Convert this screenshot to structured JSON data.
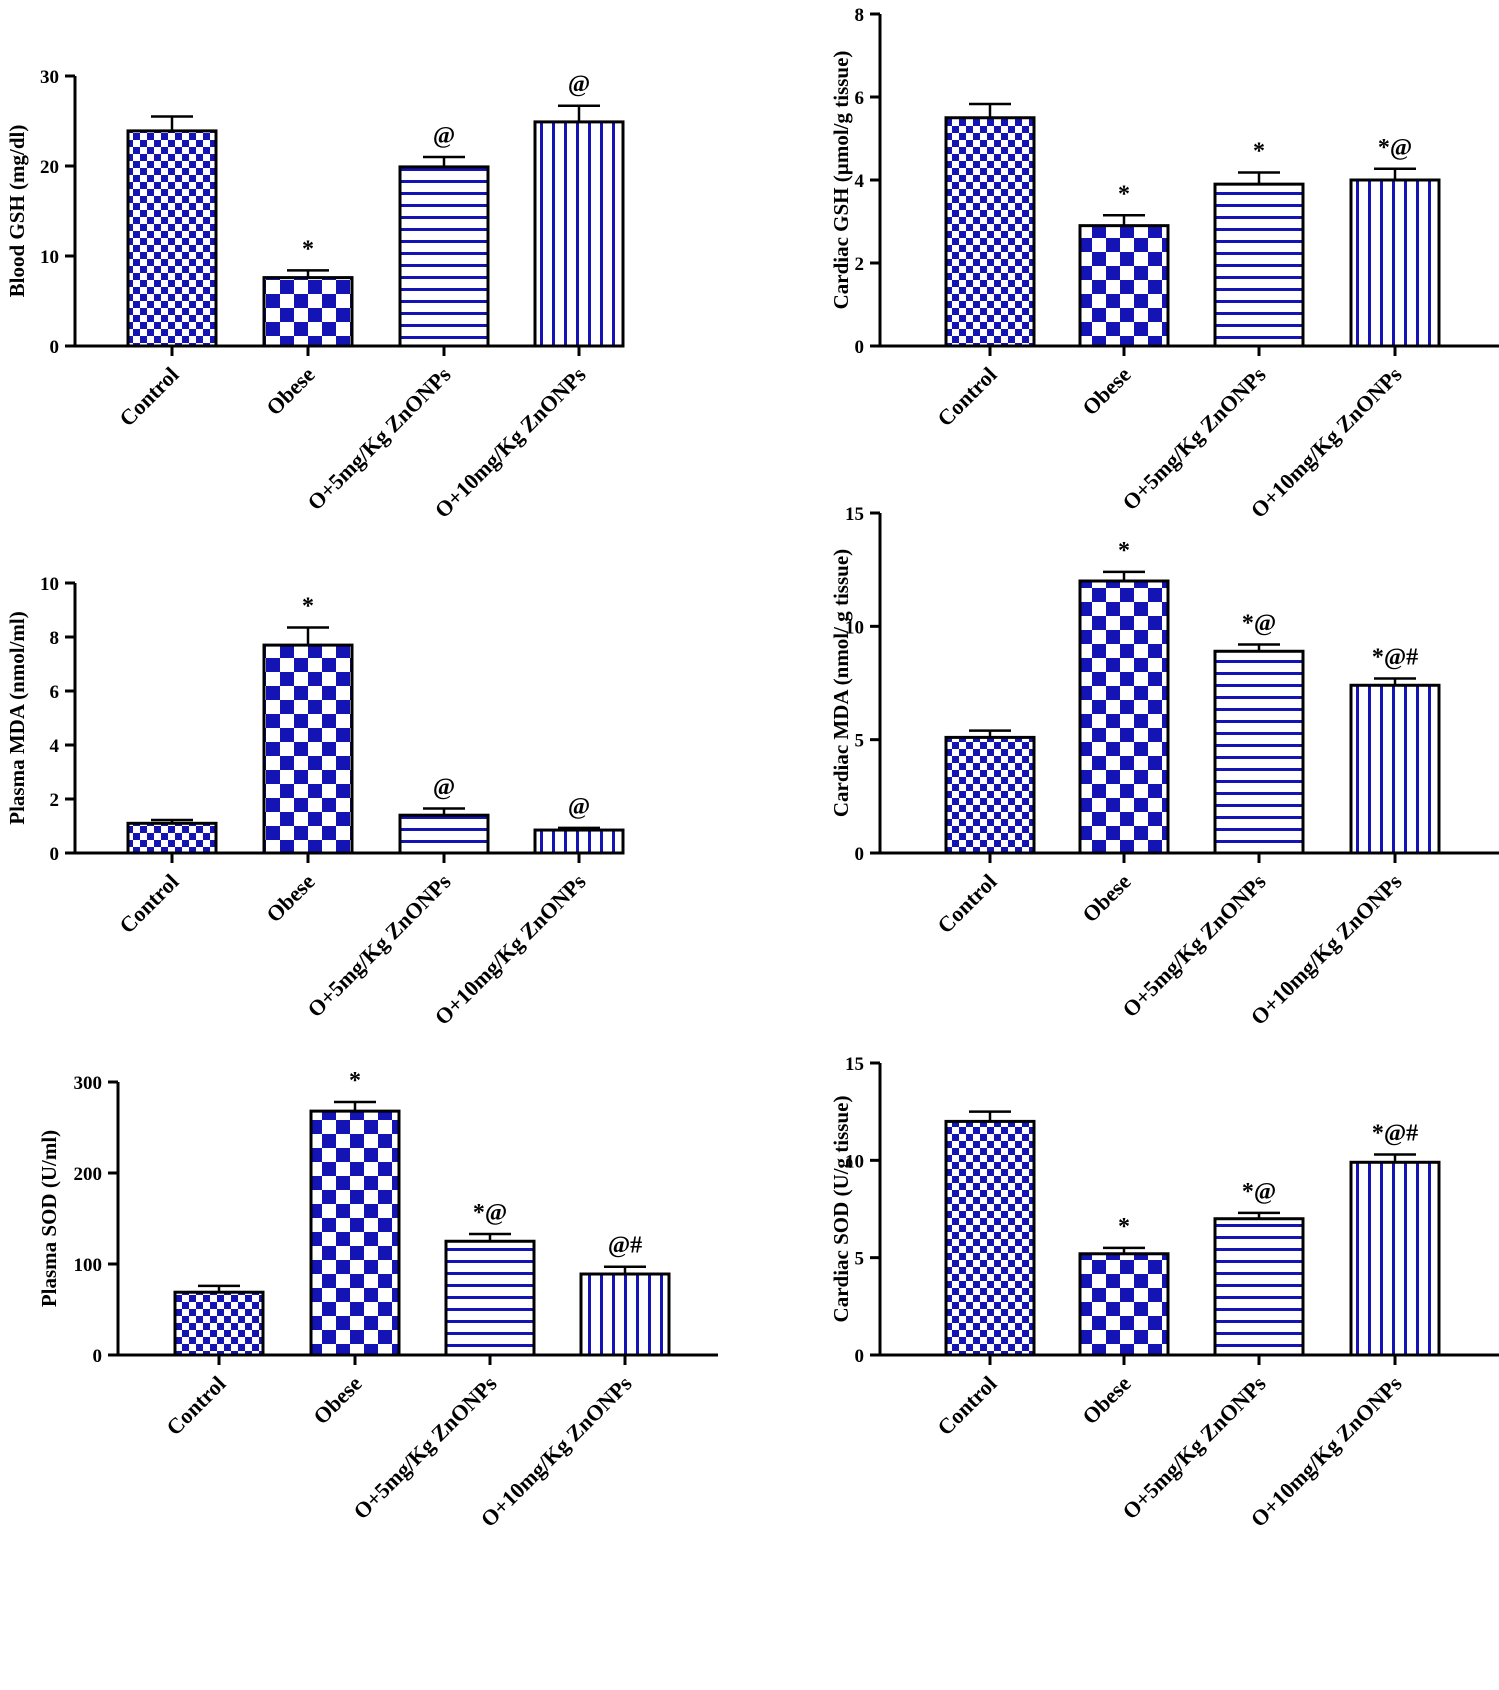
{
  "colors": {
    "bar_fill": "#1414b4",
    "background": "#ffffff",
    "stroke": "#000000"
  },
  "chart_data": [
    {
      "type": "bar",
      "ylabel": "Blood GSH (mg/dl)",
      "categories": [
        "Control",
        "Obese",
        "O+5mg/Kg ZnONPs",
        "O+10mg/Kg ZnONPs"
      ],
      "values": [
        23.9,
        7.6,
        19.9,
        24.9
      ],
      "errors": [
        1.6,
        0.8,
        1.1,
        1.8
      ],
      "annotations": [
        "",
        "*",
        "@",
        "@"
      ],
      "patterns": [
        "checker-fine",
        "checker-coarse",
        "horizontal-lines",
        "vertical-lines"
      ],
      "ylim": [
        0,
        30
      ],
      "yticks": [
        0,
        10,
        20,
        30
      ]
    },
    {
      "type": "bar",
      "ylabel": "Cardiac GSH (µmol/g tissue)",
      "categories": [
        "Control",
        "Obese",
        "O+5mg/Kg ZnONPs",
        "O+10mg/Kg ZnONPs"
      ],
      "values": [
        5.5,
        2.9,
        3.9,
        4.0
      ],
      "errors": [
        0.33,
        0.25,
        0.28,
        0.27
      ],
      "annotations": [
        "",
        "*",
        "*",
        "*@"
      ],
      "patterns": [
        "checker-fine",
        "checker-coarse",
        "horizontal-lines",
        "vertical-lines"
      ],
      "ylim": [
        0,
        8
      ],
      "yticks": [
        0,
        2,
        4,
        6,
        8
      ]
    },
    {
      "type": "bar",
      "ylabel": "Plasma MDA (nmol/ml)",
      "categories": [
        "Control",
        "Obese",
        "O+5mg/Kg ZnONPs",
        "O+10mg/Kg ZnONPs"
      ],
      "values": [
        1.1,
        7.7,
        1.4,
        0.85
      ],
      "errors": [
        0.12,
        0.65,
        0.25,
        0.08
      ],
      "annotations": [
        "",
        "*",
        "@",
        "@"
      ],
      "patterns": [
        "checker-fine",
        "checker-coarse",
        "horizontal-lines",
        "vertical-lines"
      ],
      "ylim": [
        0,
        10
      ],
      "yticks": [
        0,
        2,
        4,
        6,
        8,
        10
      ]
    },
    {
      "type": "bar",
      "ylabel": "Cardiac MDA (nmol/ g tissue)",
      "categories": [
        "Control",
        "Obese",
        "O+5mg/Kg ZnONPs",
        "O+10mg/Kg ZnONPs"
      ],
      "values": [
        5.1,
        12.0,
        8.9,
        7.4
      ],
      "errors": [
        0.3,
        0.4,
        0.3,
        0.3
      ],
      "annotations": [
        "",
        "*",
        "*@",
        "*@#"
      ],
      "patterns": [
        "checker-fine",
        "checker-coarse",
        "horizontal-lines",
        "vertical-lines"
      ],
      "ylim": [
        0,
        15
      ],
      "yticks": [
        0,
        5,
        10,
        15
      ]
    },
    {
      "type": "bar",
      "ylabel": "Plasma SOD (U/ml)",
      "categories": [
        "Control",
        "Obese",
        "O+5mg/Kg ZnONPs",
        "O+10mg/Kg ZnONPs"
      ],
      "values": [
        69,
        268,
        125,
        89
      ],
      "errors": [
        7,
        10,
        8,
        8
      ],
      "annotations": [
        "",
        "*",
        "*@",
        "@#"
      ],
      "patterns": [
        "checker-fine",
        "checker-coarse",
        "horizontal-lines",
        "vertical-lines"
      ],
      "ylim": [
        0,
        300
      ],
      "yticks": [
        0,
        100,
        200,
        300
      ]
    },
    {
      "type": "bar",
      "ylabel": "Cardiac SOD (U/g tissue)",
      "categories": [
        "Control",
        "Obese",
        "O+5mg/Kg ZnONPs",
        "O+10mg/Kg ZnONPs"
      ],
      "values": [
        12.0,
        5.2,
        7.0,
        9.9
      ],
      "errors": [
        0.5,
        0.3,
        0.3,
        0.4
      ],
      "annotations": [
        "",
        "*",
        "*@",
        "*@#"
      ],
      "patterns": [
        "checker-fine",
        "checker-coarse",
        "horizontal-lines",
        "vertical-lines"
      ],
      "ylim": [
        0,
        15
      ],
      "yticks": [
        0,
        5,
        10,
        15
      ]
    }
  ]
}
